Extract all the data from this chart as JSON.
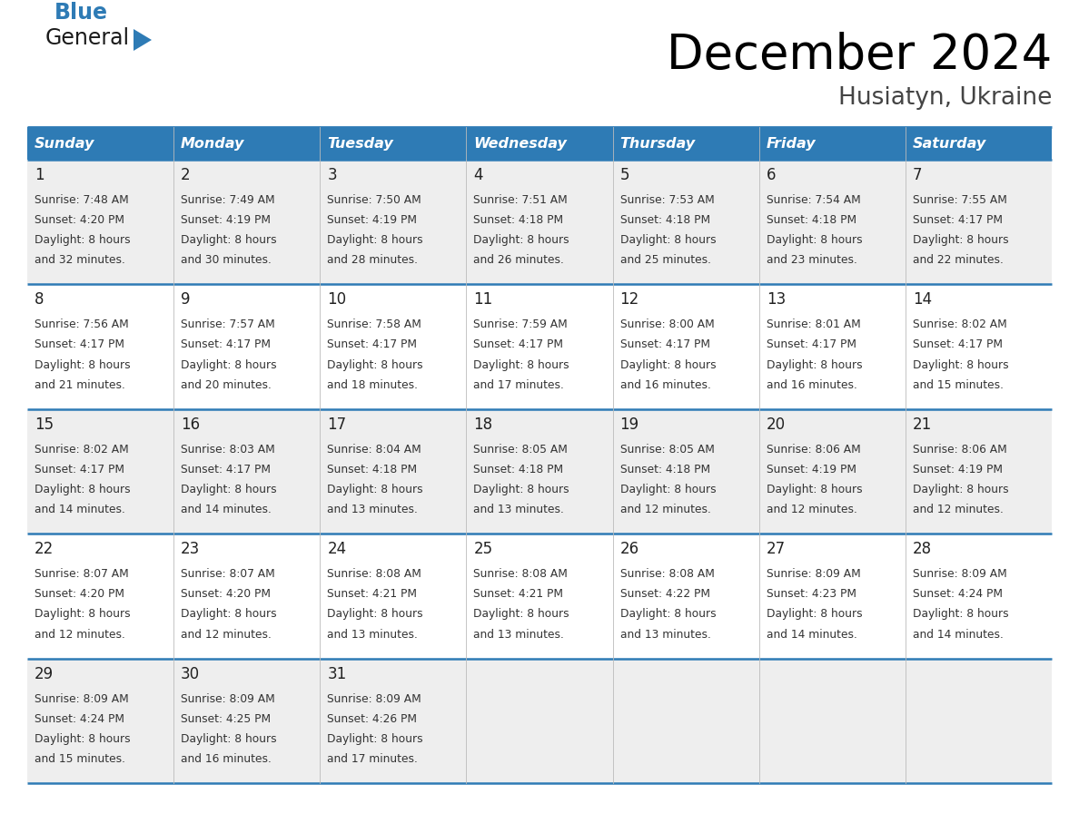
{
  "title": "December 2024",
  "subtitle": "Husiatyn, Ukraine",
  "header_color": "#2E7BB5",
  "header_text_color": "#FFFFFF",
  "day_names": [
    "Sunday",
    "Monday",
    "Tuesday",
    "Wednesday",
    "Thursday",
    "Friday",
    "Saturday"
  ],
  "row_bg_colors": [
    "#EEEEEE",
    "#FFFFFF"
  ],
  "grid_line_color": "#2E7BB5",
  "days": [
    {
      "date": 1,
      "col": 0,
      "row": 0,
      "sunrise": "7:48 AM",
      "sunset": "4:20 PM",
      "daylight": "8 hours and 32 minutes."
    },
    {
      "date": 2,
      "col": 1,
      "row": 0,
      "sunrise": "7:49 AM",
      "sunset": "4:19 PM",
      "daylight": "8 hours and 30 minutes."
    },
    {
      "date": 3,
      "col": 2,
      "row": 0,
      "sunrise": "7:50 AM",
      "sunset": "4:19 PM",
      "daylight": "8 hours and 28 minutes."
    },
    {
      "date": 4,
      "col": 3,
      "row": 0,
      "sunrise": "7:51 AM",
      "sunset": "4:18 PM",
      "daylight": "8 hours and 26 minutes."
    },
    {
      "date": 5,
      "col": 4,
      "row": 0,
      "sunrise": "7:53 AM",
      "sunset": "4:18 PM",
      "daylight": "8 hours and 25 minutes."
    },
    {
      "date": 6,
      "col": 5,
      "row": 0,
      "sunrise": "7:54 AM",
      "sunset": "4:18 PM",
      "daylight": "8 hours and 23 minutes."
    },
    {
      "date": 7,
      "col": 6,
      "row": 0,
      "sunrise": "7:55 AM",
      "sunset": "4:17 PM",
      "daylight": "8 hours and 22 minutes."
    },
    {
      "date": 8,
      "col": 0,
      "row": 1,
      "sunrise": "7:56 AM",
      "sunset": "4:17 PM",
      "daylight": "8 hours and 21 minutes."
    },
    {
      "date": 9,
      "col": 1,
      "row": 1,
      "sunrise": "7:57 AM",
      "sunset": "4:17 PM",
      "daylight": "8 hours and 20 minutes."
    },
    {
      "date": 10,
      "col": 2,
      "row": 1,
      "sunrise": "7:58 AM",
      "sunset": "4:17 PM",
      "daylight": "8 hours and 18 minutes."
    },
    {
      "date": 11,
      "col": 3,
      "row": 1,
      "sunrise": "7:59 AM",
      "sunset": "4:17 PM",
      "daylight": "8 hours and 17 minutes."
    },
    {
      "date": 12,
      "col": 4,
      "row": 1,
      "sunrise": "8:00 AM",
      "sunset": "4:17 PM",
      "daylight": "8 hours and 16 minutes."
    },
    {
      "date": 13,
      "col": 5,
      "row": 1,
      "sunrise": "8:01 AM",
      "sunset": "4:17 PM",
      "daylight": "8 hours and 16 minutes."
    },
    {
      "date": 14,
      "col": 6,
      "row": 1,
      "sunrise": "8:02 AM",
      "sunset": "4:17 PM",
      "daylight": "8 hours and 15 minutes."
    },
    {
      "date": 15,
      "col": 0,
      "row": 2,
      "sunrise": "8:02 AM",
      "sunset": "4:17 PM",
      "daylight": "8 hours and 14 minutes."
    },
    {
      "date": 16,
      "col": 1,
      "row": 2,
      "sunrise": "8:03 AM",
      "sunset": "4:17 PM",
      "daylight": "8 hours and 14 minutes."
    },
    {
      "date": 17,
      "col": 2,
      "row": 2,
      "sunrise": "8:04 AM",
      "sunset": "4:18 PM",
      "daylight": "8 hours and 13 minutes."
    },
    {
      "date": 18,
      "col": 3,
      "row": 2,
      "sunrise": "8:05 AM",
      "sunset": "4:18 PM",
      "daylight": "8 hours and 13 minutes."
    },
    {
      "date": 19,
      "col": 4,
      "row": 2,
      "sunrise": "8:05 AM",
      "sunset": "4:18 PM",
      "daylight": "8 hours and 12 minutes."
    },
    {
      "date": 20,
      "col": 5,
      "row": 2,
      "sunrise": "8:06 AM",
      "sunset": "4:19 PM",
      "daylight": "8 hours and 12 minutes."
    },
    {
      "date": 21,
      "col": 6,
      "row": 2,
      "sunrise": "8:06 AM",
      "sunset": "4:19 PM",
      "daylight": "8 hours and 12 minutes."
    },
    {
      "date": 22,
      "col": 0,
      "row": 3,
      "sunrise": "8:07 AM",
      "sunset": "4:20 PM",
      "daylight": "8 hours and 12 minutes."
    },
    {
      "date": 23,
      "col": 1,
      "row": 3,
      "sunrise": "8:07 AM",
      "sunset": "4:20 PM",
      "daylight": "8 hours and 12 minutes."
    },
    {
      "date": 24,
      "col": 2,
      "row": 3,
      "sunrise": "8:08 AM",
      "sunset": "4:21 PM",
      "daylight": "8 hours and 13 minutes."
    },
    {
      "date": 25,
      "col": 3,
      "row": 3,
      "sunrise": "8:08 AM",
      "sunset": "4:21 PM",
      "daylight": "8 hours and 13 minutes."
    },
    {
      "date": 26,
      "col": 4,
      "row": 3,
      "sunrise": "8:08 AM",
      "sunset": "4:22 PM",
      "daylight": "8 hours and 13 minutes."
    },
    {
      "date": 27,
      "col": 5,
      "row": 3,
      "sunrise": "8:09 AM",
      "sunset": "4:23 PM",
      "daylight": "8 hours and 14 minutes."
    },
    {
      "date": 28,
      "col": 6,
      "row": 3,
      "sunrise": "8:09 AM",
      "sunset": "4:24 PM",
      "daylight": "8 hours and 14 minutes."
    },
    {
      "date": 29,
      "col": 0,
      "row": 4,
      "sunrise": "8:09 AM",
      "sunset": "4:24 PM",
      "daylight": "8 hours and 15 minutes."
    },
    {
      "date": 30,
      "col": 1,
      "row": 4,
      "sunrise": "8:09 AM",
      "sunset": "4:25 PM",
      "daylight": "8 hours and 16 minutes."
    },
    {
      "date": 31,
      "col": 2,
      "row": 4,
      "sunrise": "8:09 AM",
      "sunset": "4:26 PM",
      "daylight": "8 hours and 17 minutes."
    }
  ]
}
